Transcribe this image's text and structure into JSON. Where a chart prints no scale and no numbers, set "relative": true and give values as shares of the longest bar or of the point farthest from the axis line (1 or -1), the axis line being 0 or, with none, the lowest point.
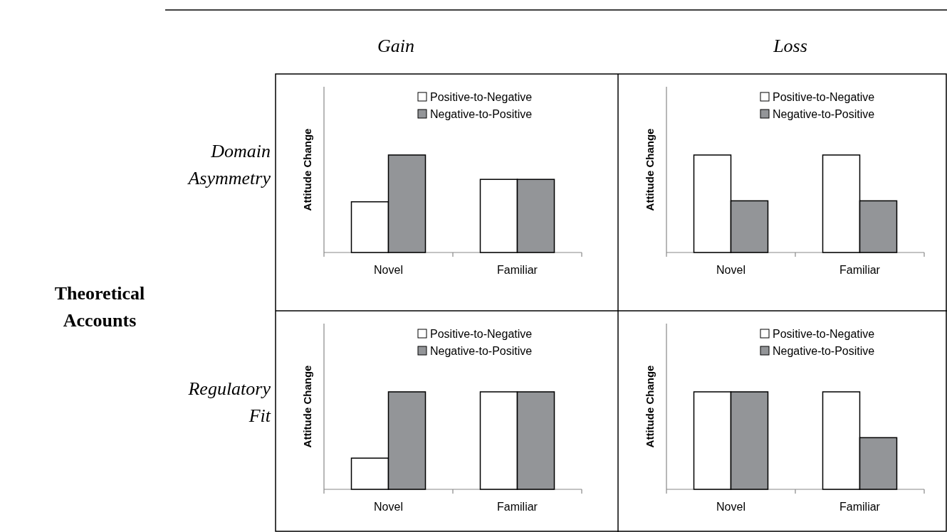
{
  "chart_data": [
    {
      "type": "other",
      "annotations": [
        "Gain",
        "Loss",
        "Domain Asymmetry",
        "Regulatory Fit",
        "Theoretical Accounts"
      ]
    },
    {
      "type": "bar",
      "relative": true,
      "ylabel": "Attitude Change",
      "categories": [
        "Novel",
        "Familiar"
      ],
      "legend": "top",
      "series": [
        {
          "name": "Positive-to-Negative",
          "color": "#ffffff",
          "values": [
            0.52,
            0.75
          ]
        },
        {
          "name": "Negative-to-Positive",
          "color": "#939598",
          "values": [
            1,
            0.75
          ]
        }
      ]
    },
    {
      "type": "bar",
      "relative": true,
      "ylabel": "Attitude Change",
      "categories": [
        "Novel",
        "Familiar"
      ],
      "legend": "top",
      "series": [
        {
          "name": "Positive-to-Negative",
          "color": "#ffffff",
          "values": [
            1,
            1
          ]
        },
        {
          "name": "Negative-to-Positive",
          "color": "#939598",
          "values": [
            0.53,
            0.53
          ]
        }
      ]
    },
    {
      "type": "bar",
      "relative": true,
      "ylabel": "Attitude Change",
      "categories": [
        "Novel",
        "Familiar"
      ],
      "legend": "top",
      "series": [
        {
          "name": "Positive-to-Negative",
          "color": "#ffffff",
          "values": [
            0.32,
            1
          ]
        },
        {
          "name": "Negative-to-Positive",
          "color": "#939598",
          "values": [
            1,
            1
          ]
        }
      ]
    },
    {
      "type": "bar",
      "relative": true,
      "ylabel": "Attitude Change",
      "categories": [
        "Novel",
        "Familiar"
      ],
      "legend": "top",
      "series": [
        {
          "name": "Positive-to-Negative",
          "color": "#ffffff",
          "values": [
            1,
            1
          ]
        },
        {
          "name": "Negative-to-Positive",
          "color": "#939598",
          "values": [
            1,
            0.53
          ]
        }
      ]
    }
  ]
}
